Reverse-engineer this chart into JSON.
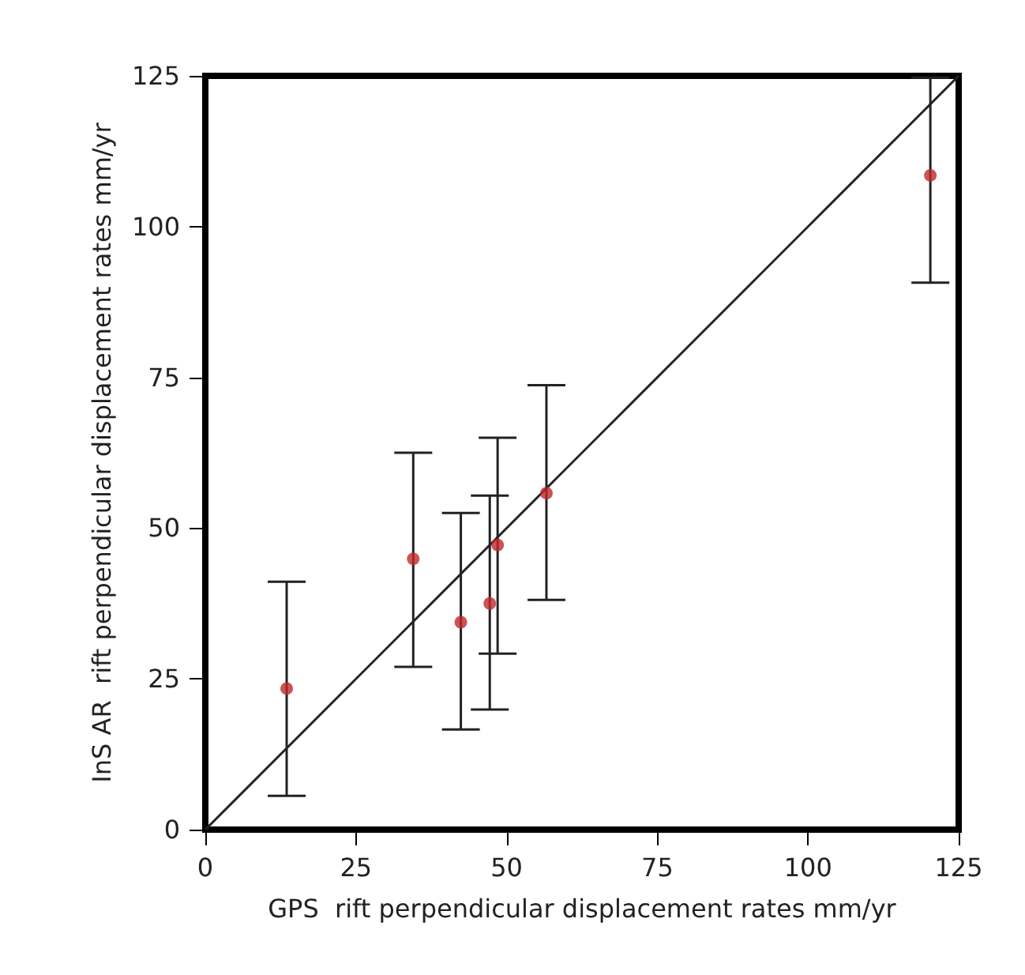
{
  "chart_data": {
    "type": "scatter",
    "xlabel": "GPS  rift perpendicular displacement rates mm/yr",
    "ylabel": "InS AR  rift perpendicular displacement rates mm/yr",
    "xlim": [
      0,
      125
    ],
    "ylim": [
      0,
      125
    ],
    "xticks": [
      0,
      25,
      50,
      75,
      100,
      125
    ],
    "yticks": [
      0,
      25,
      50,
      75,
      100,
      125
    ],
    "grid": false,
    "marker": "circle",
    "series": [
      {
        "color": "#c0282d",
        "x": [
          13.5,
          34.5,
          42.4,
          47.2,
          48.5,
          56.6,
          120.3
        ],
        "values": [
          23.4,
          44.9,
          34.4,
          37.5,
          47.2,
          55.8,
          108.5
        ],
        "errors": [
          [
            5.6,
            41.1
          ],
          [
            27.0,
            62.5
          ],
          [
            16.6,
            52.5
          ],
          [
            19.9,
            55.4
          ],
          [
            29.2,
            65.0
          ],
          [
            38.1,
            73.7
          ],
          [
            90.7,
            124.7
          ]
        ]
      },
      {
        "type": "line",
        "color": "#222222",
        "marker": "none",
        "line_style": "solid",
        "x": [
          0,
          125
        ],
        "values": [
          0,
          125
        ]
      }
    ]
  }
}
